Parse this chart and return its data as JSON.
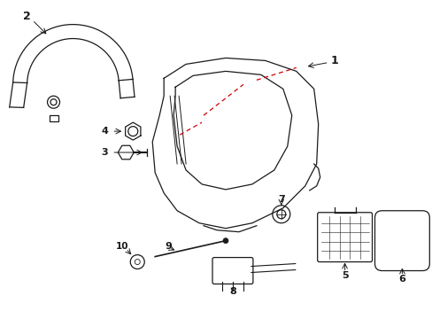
{
  "background_color": "#ffffff",
  "line_color": "#1a1a1a",
  "red_dashed_color": "#cc0000",
  "label_color": "#000000",
  "label_fontsize": 8,
  "fig_width": 4.89,
  "fig_height": 3.6,
  "dpi": 100
}
